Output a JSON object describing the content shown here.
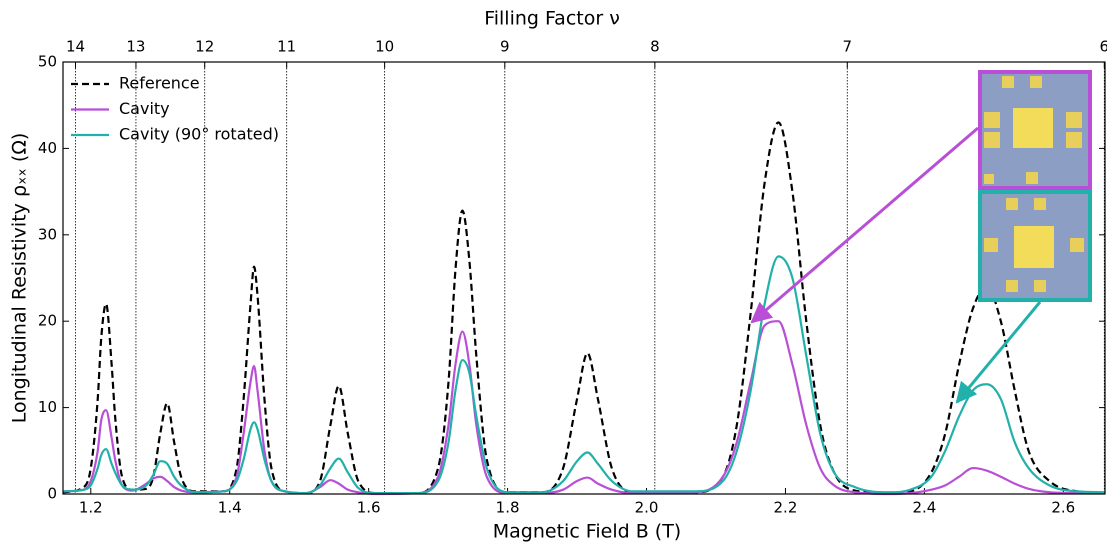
{
  "chart_data": {
    "type": "line",
    "xlabel": "Magnetic Field B (T)",
    "ylabel": "Longitudinal Resistivity ρₓₓ (Ω)",
    "x2label": "Filling Factor ν",
    "xlim": [
      1.16,
      2.66
    ],
    "ylim": [
      0,
      50
    ],
    "xticks": [
      1.2,
      1.4,
      1.6,
      1.8,
      {
        "value": 2,
        "label": "2.0"
      },
      2.2,
      2.4,
      2.6
    ],
    "yticks": [
      0,
      10,
      20,
      30,
      40,
      50
    ],
    "x2ticks": [
      {
        "value": 1.178,
        "label": "14"
      },
      {
        "value": 1.265,
        "label": "13"
      },
      {
        "value": 1.364,
        "label": "12"
      },
      {
        "value": 1.482,
        "label": "11"
      },
      {
        "value": 1.623,
        "label": "10"
      },
      {
        "value": 1.796,
        "label": "9"
      },
      {
        "value": 2.012,
        "label": "8"
      },
      {
        "value": 2.289,
        "label": "7"
      },
      {
        "value": 2.659,
        "label": "6"
      }
    ],
    "legend": "upper left",
    "x": [
      1.16,
      1.19,
      1.2,
      1.21,
      1.215,
      1.222,
      1.23,
      1.235,
      1.245,
      1.26,
      1.28,
      1.29,
      1.3,
      1.31,
      1.32,
      1.33,
      1.35,
      1.39,
      1.41,
      1.42,
      1.43,
      1.435,
      1.44,
      1.45,
      1.46,
      1.48,
      1.51,
      1.53,
      1.545,
      1.557,
      1.57,
      1.585,
      1.61,
      1.67,
      1.7,
      1.715,
      1.725,
      1.735,
      1.745,
      1.755,
      1.77,
      1.8,
      1.85,
      1.88,
      1.9,
      1.915,
      1.93,
      1.95,
      1.98,
      2.07,
      2.11,
      2.13,
      2.15,
      2.17,
      2.19,
      2.21,
      2.23,
      2.25,
      2.27,
      2.3,
      2.35,
      2.38,
      2.41,
      2.43,
      2.45,
      2.47,
      2.49,
      2.51,
      2.53,
      2.55,
      2.58,
      2.62,
      2.66
    ],
    "series": [
      {
        "name": "Reference",
        "color": "#000000",
        "linestyle": "dashed",
        "values": [
          0.2,
          0.8,
          3,
          11,
          18,
          22,
          15,
          9,
          2,
          0.5,
          0.6,
          2,
          7,
          10.5,
          6,
          2,
          0.3,
          0.3,
          3,
          11,
          22,
          26.3,
          23,
          11,
          3,
          0.3,
          0.1,
          1.5,
          8,
          12.5,
          7,
          1.5,
          0.1,
          0.1,
          3,
          13,
          26,
          32.8,
          27,
          16,
          4,
          0.2,
          0.2,
          3,
          11,
          16.3,
          11,
          3,
          0.2,
          0.2,
          2,
          8,
          21,
          36,
          43,
          35,
          20,
          8,
          2.5,
          0.4,
          0.1,
          0.3,
          2.5,
          7,
          15,
          21.5,
          24,
          20,
          12,
          5,
          1.5,
          0.3,
          0.1
        ]
      },
      {
        "name": "Cavity",
        "color": "#b84fd6",
        "linestyle": "solid",
        "values": [
          0.3,
          0.5,
          1.5,
          5,
          8.5,
          9.7,
          6.5,
          4,
          1,
          0.4,
          1.2,
          1.8,
          2,
          1.5,
          0.8,
          0.4,
          0.2,
          0.3,
          2,
          7,
          13,
          14.8,
          12,
          5,
          1.5,
          0.3,
          0.1,
          0.8,
          1.6,
          1.2,
          0.5,
          0.2,
          0,
          0.1,
          2,
          8,
          15,
          18.8,
          15,
          8,
          2,
          0.1,
          0.1,
          0.5,
          1.5,
          1.9,
          1.2,
          0.5,
          0.1,
          0.2,
          2,
          6,
          13,
          19.5,
          20,
          15,
          8,
          3,
          1,
          0.2,
          0,
          0.1,
          0.5,
          1,
          2,
          3,
          2.7,
          2,
          1.2,
          0.6,
          0.2,
          0.1,
          0.1
        ]
      },
      {
        "name": "Cavity (90° rotated)",
        "color": "#22b0aa",
        "linestyle": "solid",
        "values": [
          0.3,
          0.5,
          1,
          3,
          4.5,
          5.2,
          3.5,
          2.5,
          1,
          0.5,
          1,
          2.2,
          3.8,
          3.5,
          2,
          1,
          0.2,
          0.3,
          1.5,
          4,
          7.5,
          8.3,
          7.5,
          4,
          1.5,
          0.3,
          0.1,
          1,
          3,
          4.1,
          2.5,
          0.7,
          0.1,
          0.1,
          1.5,
          6,
          12,
          15.5,
          14,
          9,
          3,
          0.2,
          0.2,
          1.5,
          3.8,
          4.8,
          3.5,
          1.5,
          0.3,
          0.3,
          1.5,
          5,
          12,
          22,
          27.5,
          25,
          16,
          7,
          2.5,
          0.8,
          0.2,
          0.5,
          2,
          5,
          9,
          12,
          12.7,
          11,
          6,
          3,
          1,
          0.3,
          0.2
        ]
      }
    ]
  }
}
